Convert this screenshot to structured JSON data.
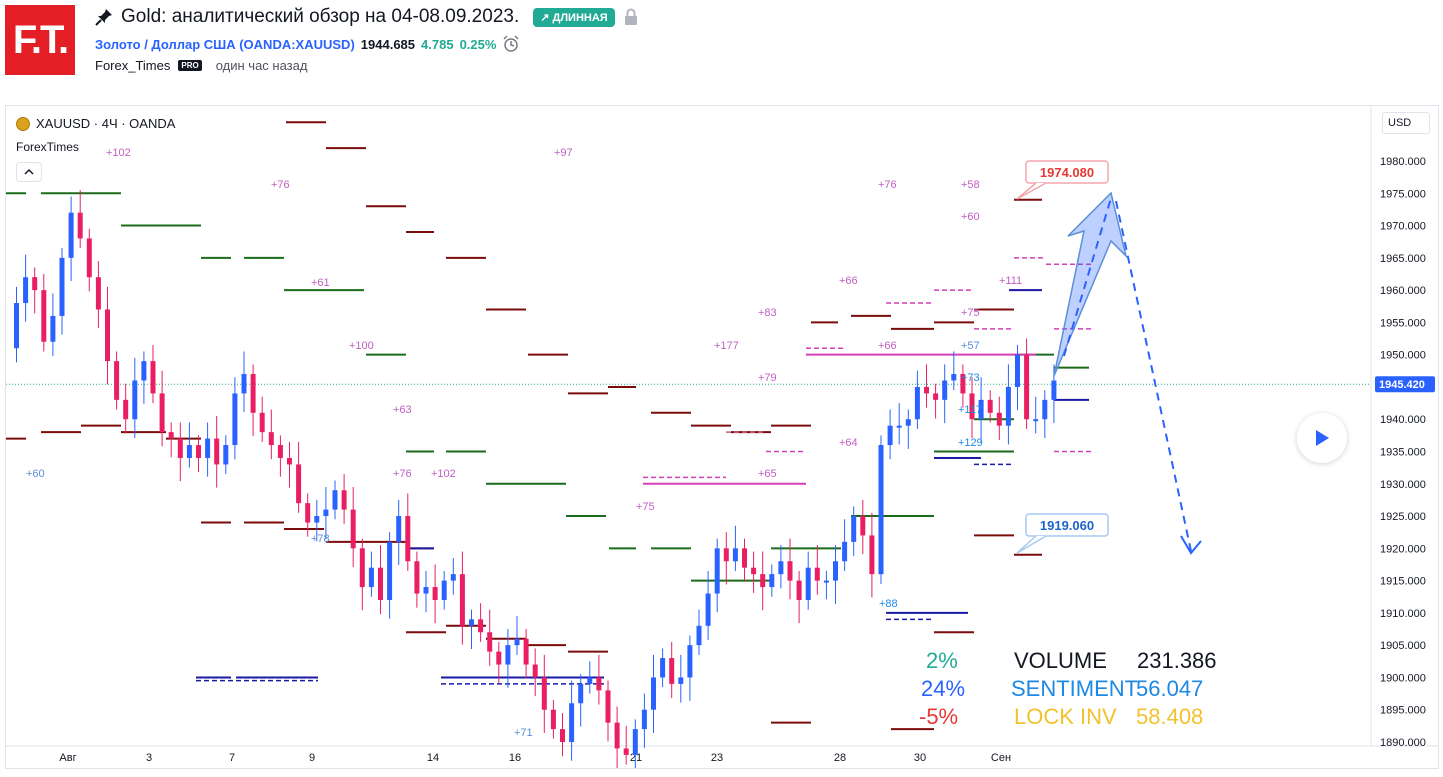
{
  "header": {
    "logo_text": "F.T.",
    "pin_icon": "pin-icon",
    "title": "Gold: аналитический обзор на 04-08.09.2023.",
    "badge": "↗ ДЛИННАЯ",
    "lock_icon": "lock-icon",
    "symbol_link": "Золото / Доллар США (OANDA:XAUUSD)",
    "price": "1944.685",
    "change": "4.785",
    "change_pct": "0.25%",
    "alarm_icon": "alarm-icon",
    "author": "Forex_Times",
    "pro": "PRO",
    "time_ago": "один час назад"
  },
  "chart": {
    "legend": "XAUUSD · 4Ч · OANDA",
    "indicator_label": "ForexTimes",
    "currency": "USD",
    "last_price": "1945.420",
    "price_ticks": [
      "1980.000",
      "1975.000",
      "1970.000",
      "1965.000",
      "1960.000",
      "1955.000",
      "1950.000",
      "1945.000",
      "1940.000",
      "1935.000",
      "1930.000",
      "1925.000",
      "1920.000",
      "1915.000",
      "1910.000",
      "1905.000",
      "1900.000",
      "1895.000",
      "1890.000"
    ],
    "date_ticks": [
      "Авг",
      "3",
      "7",
      "9",
      "14",
      "16",
      "21",
      "23",
      "28",
      "30",
      "Сен"
    ],
    "callout_high": "1974.080",
    "callout_low": "1919.060",
    "annotations": [
      "+102",
      "+76",
      "+97",
      "+61",
      "+100",
      "+63",
      "+76",
      "+102",
      "+60",
      "+78",
      "+71",
      "+75",
      "+65",
      "+83",
      "+177",
      "+79",
      "+66",
      "+64",
      "+66",
      "+76",
      "+58",
      "+60",
      "+111",
      "+75",
      "+57",
      "+73",
      "+117",
      "+129",
      "+88"
    ],
    "stats": {
      "pct1": "2%",
      "pct2": "24%",
      "pct3": "-5%",
      "volume_label": "VOLUME",
      "volume_value": "231.386",
      "sentiment_label": "SENTIMENT",
      "sentiment_value": "56.047",
      "lockinv_label": "LOCK INV",
      "lockinv_value": "58.408"
    },
    "colors": {
      "up": "#2962ff",
      "down": "#e91e63",
      "green_level": "#1b6b1b",
      "red_level": "#7b0c0c",
      "blue_level": "#1a1aa6",
      "magenta": "#d63fb5"
    }
  }
}
